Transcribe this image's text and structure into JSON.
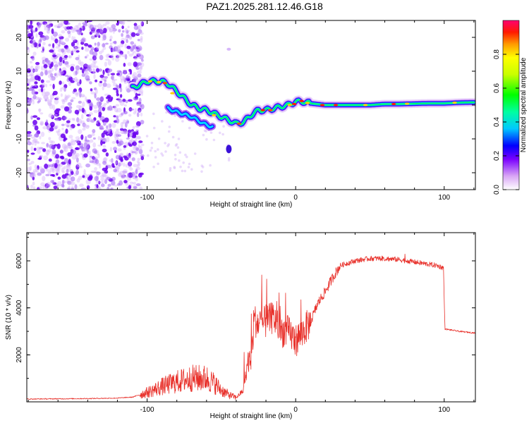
{
  "title": "PAZ1.2025.281.12.46.G18",
  "chart_data": [
    {
      "type": "heatmap",
      "xlabel": "Height of straight line (km)",
      "ylabel": "Frequency (Hz)",
      "xlim": [
        -181,
        121
      ],
      "ylim": [
        -25,
        25
      ],
      "xticks": [
        -100,
        0,
        100
      ],
      "xtick_labels": [
        "-100",
        "0",
        "100"
      ],
      "yticks": [
        -20,
        -10,
        0,
        10,
        20
      ],
      "ytick_labels": [
        "-20",
        "-10",
        "0",
        "10",
        "20"
      ],
      "colorbar": {
        "label": "Normalized spectral amplitude",
        "range": [
          0,
          1
        ],
        "ticks": [
          0.0,
          0.2,
          0.4,
          0.6,
          0.8
        ],
        "tick_labels": [
          "0.0",
          "0.2",
          "0.4",
          "0.6",
          "0.8"
        ]
      },
      "ridge": {
        "x": [
          -110,
          -105,
          -100,
          -95,
          -90,
          -85,
          -80,
          -75,
          -70,
          -65,
          -60,
          -55,
          -50,
          -45,
          -40,
          -35,
          -30,
          -25,
          -20,
          -15,
          -10,
          -5,
          0,
          5,
          10,
          20,
          30,
          40,
          50,
          60,
          70,
          80,
          90,
          100,
          110,
          120
        ],
        "freq": [
          5,
          6,
          7,
          7,
          7,
          6,
          4,
          2,
          0,
          -1,
          -1.5,
          -2.5,
          -3.5,
          -4.5,
          -5.5,
          -5,
          -3,
          -1.5,
          -1.5,
          -1,
          -0.5,
          0,
          1,
          1,
          0.5,
          0,
          0,
          0,
          0,
          0.3,
          0.3,
          0.4,
          0.5,
          0.5,
          0.7,
          0.8
        ]
      }
    },
    {
      "type": "line",
      "xlabel": "Height of straight line (km)",
      "ylabel": "SNR (10 * v/v)",
      "xlim": [
        -181,
        121
      ],
      "ylim": [
        0,
        7200
      ],
      "xticks": [
        -100,
        0,
        100
      ],
      "xtick_labels": [
        "-100",
        "0",
        "100"
      ],
      "yticks": [
        2000,
        4000,
        6000
      ],
      "ytick_labels": [
        "2000",
        "4000",
        "6000"
      ],
      "series": [
        {
          "name": "SNR",
          "color": "#e8302a",
          "x": [
            -181,
            -160,
            -140,
            -120,
            -110,
            -100,
            -95,
            -90,
            -80,
            -70,
            -60,
            -55,
            -50,
            -45,
            -40,
            -35,
            -32,
            -30,
            -28,
            -25,
            -20,
            -15,
            -10,
            -5,
            0,
            5,
            10,
            15,
            20,
            25,
            30,
            40,
            50,
            60,
            70,
            80,
            90,
            95,
            99.5,
            100.5,
            110,
            121
          ],
          "y": [
            120,
            130,
            140,
            160,
            200,
            400,
            520,
            650,
            850,
            1000,
            1000,
            800,
            500,
            300,
            180,
            500,
            1800,
            1500,
            3500,
            3300,
            3400,
            3600,
            3000,
            3000,
            2600,
            3000,
            3400,
            4200,
            4700,
            5300,
            5800,
            6000,
            6100,
            6100,
            6050,
            5950,
            5850,
            5800,
            5700,
            3100,
            3000,
            2930
          ]
        }
      ]
    }
  ]
}
